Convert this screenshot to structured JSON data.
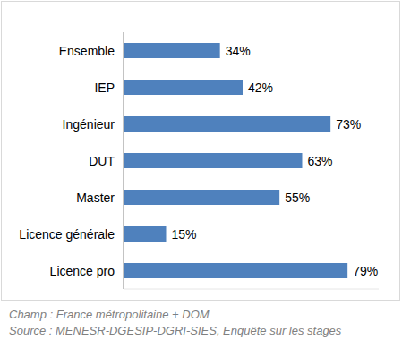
{
  "chart_data": {
    "type": "bar",
    "orientation": "horizontal",
    "categories": [
      "Ensemble",
      "IEP",
      "Ingénieur",
      "DUT",
      "Master",
      "Licence générale",
      "Licence pro"
    ],
    "values": [
      34,
      42,
      73,
      63,
      55,
      15,
      79
    ],
    "value_labels": [
      "34%",
      "42%",
      "73%",
      "63%",
      "55%",
      "15%",
      "79%"
    ],
    "data_labels": true,
    "tick_labels": "y",
    "color": "#4f81bd",
    "xlim": [
      0,
      90
    ],
    "annotations": [
      "Champ : France métropolitaine + DOM",
      "Source : MENESR-DGESIP-DGRI-SIES, Enquête sur les stages"
    ]
  }
}
